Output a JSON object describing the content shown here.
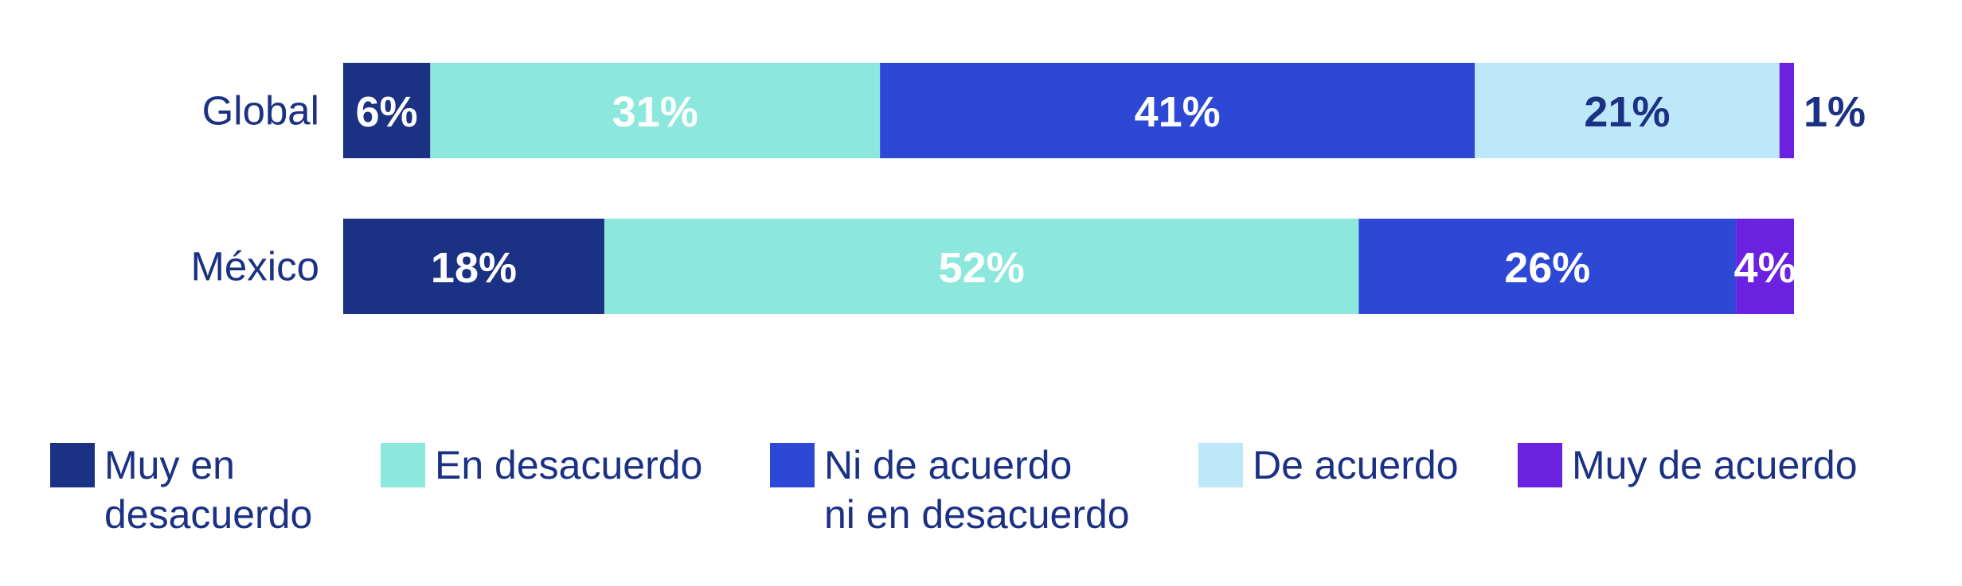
{
  "chart_data": {
    "type": "bar",
    "orientation": "horizontal",
    "stacked": true,
    "normalized": true,
    "title": "",
    "xlabel": "",
    "ylabel": "",
    "xlim": [
      0,
      100
    ],
    "grid": false,
    "legend_position": "bottom",
    "categories": [
      "Global",
      "México"
    ],
    "series": [
      {
        "name": "Muy en desacuerdo",
        "legend_lines": [
          "Muy en",
          "desacuerdo"
        ],
        "color": "#1b3184",
        "label_color": "#ffffff",
        "values": [
          6,
          18
        ],
        "labels": [
          "6%",
          "18%"
        ]
      },
      {
        "name": "En desacuerdo",
        "legend_lines": [
          "En desacuerdo"
        ],
        "color": "#8ce8dc",
        "label_color": "#ffffff",
        "values": [
          31,
          52
        ],
        "labels": [
          "31%",
          "52%"
        ]
      },
      {
        "name": "Ni de acuerdo ni en desacuerdo",
        "legend_lines": [
          "Ni de acuerdo",
          "ni en desacuerdo"
        ],
        "color": "#2e48d6",
        "label_color": "#ffffff",
        "values": [
          41,
          26
        ],
        "labels": [
          "41%",
          "26%"
        ]
      },
      {
        "name": "De acuerdo",
        "legend_lines": [
          "De acuerdo"
        ],
        "color": "#bde8fa",
        "label_color": "#1b3184",
        "values": [
          21,
          0
        ],
        "labels": [
          "21%",
          ""
        ]
      },
      {
        "name": "Muy de acuerdo",
        "legend_lines": [
          "Muy de acuerdo"
        ],
        "color": "#6b21e0",
        "label_color": "#ffffff",
        "values": [
          1,
          4
        ],
        "labels": [
          "1%",
          "4%"
        ]
      }
    ],
    "text_color": "#1b3184"
  }
}
